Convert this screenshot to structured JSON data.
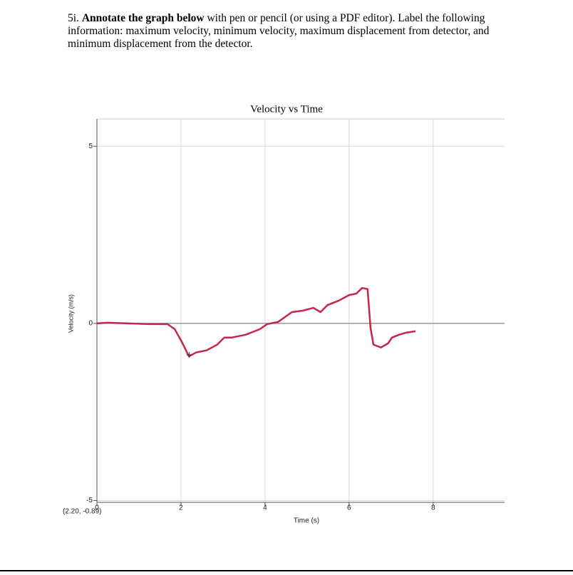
{
  "instruction": {
    "number": "5i.",
    "bold": "Annotate the graph below",
    "text": "with pen or pencil (or using a PDF editor). Label the following information: maximum velocity, minimum velocity, maximum displacement from detector, and minimum displacement from the detector."
  },
  "chart_data": {
    "type": "line",
    "title": "Velocity vs Time",
    "x_label": "Time (s)",
    "y_label": "Velocity (m/s)",
    "x": [
      0,
      0.24,
      0.75,
      1.25,
      1.68,
      1.85,
      2.02,
      2.19,
      2.36,
      2.61,
      2.86,
      3.03,
      3.2,
      3.54,
      3.88,
      4.05,
      4.31,
      4.64,
      4.9,
      5.15,
      5.32,
      5.49,
      5.75,
      6.0,
      6.17,
      6.31,
      6.44,
      6.51,
      6.58,
      6.76,
      6.93,
      7.02,
      7.19,
      7.36,
      7.58
    ],
    "series": [
      {
        "name": "Velocity",
        "color": "#c8254a",
        "values": [
          0,
          0.02,
          0,
          -0.02,
          -0.02,
          -0.16,
          -0.52,
          -0.93,
          -0.82,
          -0.76,
          -0.6,
          -0.4,
          -0.4,
          -0.32,
          -0.16,
          -0.02,
          0.04,
          0.32,
          0.36,
          0.44,
          0.32,
          0.52,
          0.64,
          0.8,
          0.84,
          1.0,
          0.97,
          -0.12,
          -0.6,
          -0.68,
          -0.56,
          -0.4,
          -0.32,
          -0.26,
          -0.22
        ]
      }
    ],
    "xlim": [
      0,
      9.7
    ],
    "ylim": [
      -5.05,
      5.77
    ],
    "xticks": [
      0,
      2,
      4,
      6,
      8
    ],
    "yticks": [
      -5,
      0,
      5
    ],
    "grid": true,
    "cursor": {
      "x": 2.2,
      "y": -0.89,
      "label": "(2.20, -0.89)"
    }
  }
}
